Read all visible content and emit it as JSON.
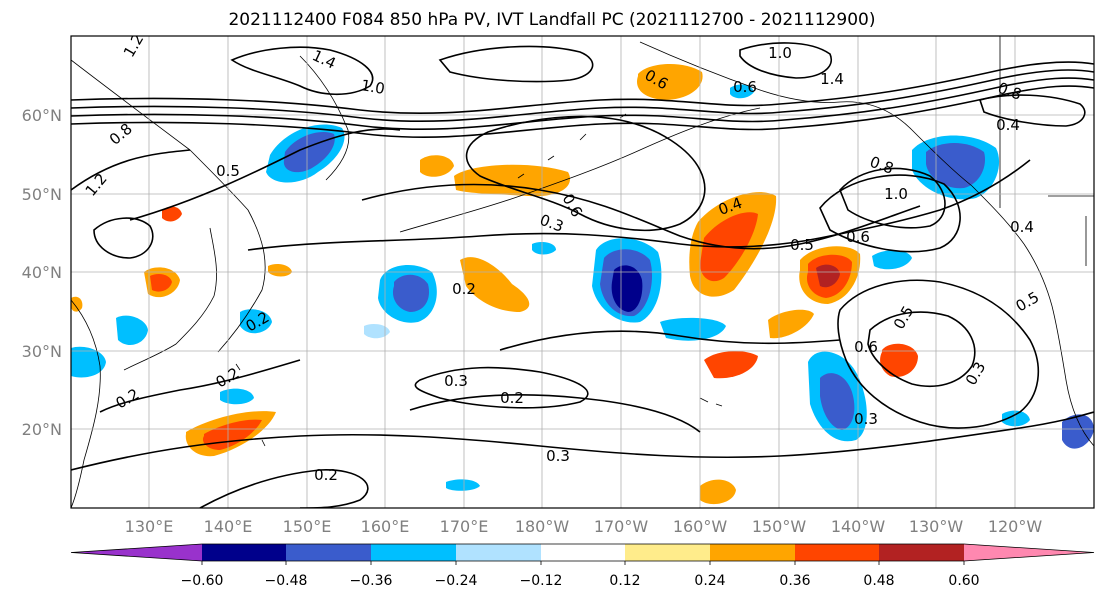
{
  "title": "2021112400 F084 850 hPa PV, IVT Landfall PC (2021112700 - 2021112900)",
  "lat_labels": [
    "60°N",
    "50°N",
    "40°N",
    "30°N",
    "20°N"
  ],
  "lon_labels": [
    "130°E",
    "140°E",
    "150°E",
    "160°E",
    "170°E",
    "180°W",
    "170°W",
    "160°W",
    "150°W",
    "140°W",
    "130°W",
    "120°W"
  ],
  "colorbar": {
    "ticks": [
      "−0.60",
      "−0.48",
      "−0.36",
      "−0.24",
      "−0.12",
      "0.12",
      "0.24",
      "0.36",
      "0.48",
      "0.60"
    ],
    "colors": [
      "#9932cc",
      "#00008b",
      "#3a5ccc",
      "#00bfff",
      "#b0e2ff",
      "#ffffff",
      "#ffec8b",
      "#ffa500",
      "#ff4500",
      "#b22222",
      "#ff88b0"
    ]
  },
  "contour_labels": [
    "1.2",
    "1.4",
    "1.0",
    "1.0",
    "1.4",
    "0.8",
    "0.8",
    "1.2",
    "0.4",
    "0.6",
    "0.6",
    "0.5",
    "0.8",
    "1.0",
    "0.4",
    "0.4",
    "0.6",
    "0.3",
    "0.5",
    "0.6",
    "0.2",
    "0.5",
    "0.6",
    "0.2",
    "0.2",
    "0.2",
    "0.3",
    "0.2",
    "0.3",
    "0.2",
    "0.3",
    "0.3",
    "0.5"
  ],
  "colors": {
    "axis_label": "#808080",
    "contour": "#000000",
    "grid": "#b0b0b0",
    "coast": "#000000"
  }
}
